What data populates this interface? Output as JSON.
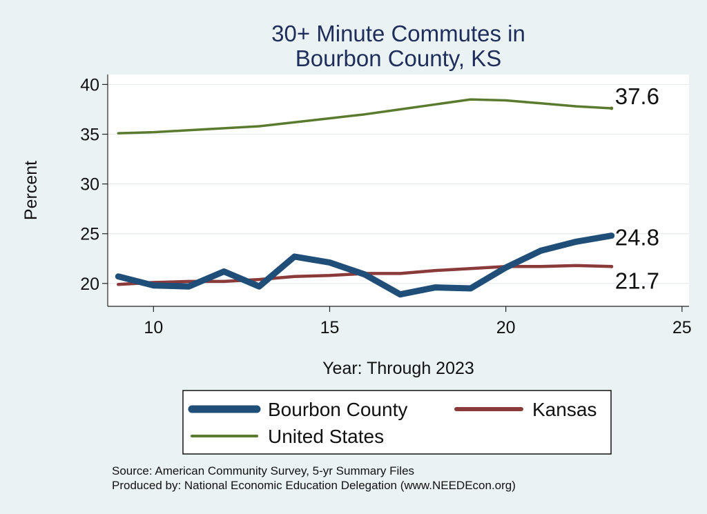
{
  "chart_data": {
    "type": "line",
    "title": [
      "30+ Minute Commutes in",
      "Bourbon County, KS"
    ],
    "xlabel": "Year: Through 2023",
    "ylabel": "Percent",
    "xlim": [
      8.7,
      25.2
    ],
    "ylim": [
      17.7,
      41.0
    ],
    "xticks": [
      10,
      15,
      20,
      25
    ],
    "yticks": [
      20,
      25,
      30,
      35,
      40
    ],
    "grid": "horizontal",
    "x": [
      9,
      10,
      11,
      12,
      13,
      14,
      15,
      16,
      17,
      18,
      19,
      20,
      21,
      22,
      23
    ],
    "series": [
      {
        "key": "bourbon",
        "name": "Bourbon County",
        "color": "#1f4e79",
        "values": [
          20.7,
          19.8,
          19.7,
          21.2,
          19.7,
          22.7,
          22.1,
          20.9,
          18.9,
          19.6,
          19.5,
          21.6,
          23.3,
          24.2,
          24.8
        ],
        "end_label": "24.8"
      },
      {
        "key": "kansas",
        "name": "Kansas",
        "color": "#8b3a3a",
        "values": [
          19.9,
          20.1,
          20.2,
          20.2,
          20.4,
          20.7,
          20.8,
          21.0,
          21.0,
          21.3,
          21.5,
          21.7,
          21.7,
          21.8,
          21.7
        ],
        "end_label": "21.7"
      },
      {
        "key": "us",
        "name": "United States",
        "color": "#5a7a2e",
        "values": [
          35.1,
          35.2,
          35.4,
          35.6,
          35.8,
          36.2,
          36.6,
          37.0,
          37.5,
          38.0,
          38.5,
          38.4,
          38.1,
          37.8,
          37.6
        ],
        "end_label": "37.6"
      }
    ],
    "legend": {
      "position": "bottom",
      "items": [
        "Bourbon County",
        "Kansas",
        "United States"
      ]
    },
    "notes": [
      "Source: American Community Survey, 5-yr Summary Files",
      "Produced by: National Economic Education Delegation (www.NEEDEcon.org)"
    ]
  }
}
